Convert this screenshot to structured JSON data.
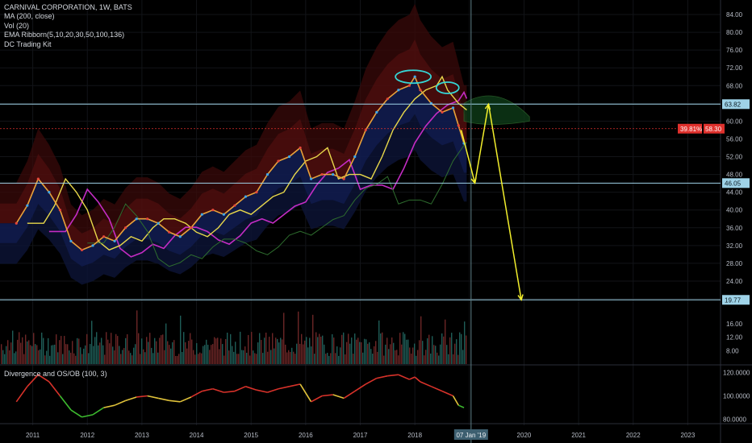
{
  "legend": {
    "symbol_line": "CARNIVAL CORPORATION, 1W, BATS",
    "ma": "MA (200, close)",
    "vol": "Vol (20)",
    "ema": "EMA Ribborn(5,10,20,30,50,100,136)",
    "kit": "DC Trading Kit"
  },
  "oscillator": {
    "title": "Divergence and OS/OB (100, 3)"
  },
  "price_axis": {
    "ticks": [
      "84.00",
      "80.00",
      "76.00",
      "72.00",
      "68.00",
      "64.00",
      "60.00",
      "56.00",
      "52.00",
      "48.00",
      "44.00",
      "40.00",
      "36.00",
      "32.00",
      "28.00",
      "24.00",
      "20.00"
    ]
  },
  "volume_axis": {
    "ticks": [
      "16.00",
      "12.00",
      "8.00"
    ]
  },
  "osc_axis": {
    "ticks": [
      "120.0000",
      "100.0000",
      "80.0000"
    ]
  },
  "time_axis": {
    "ticks": [
      "2011",
      "2012",
      "2013",
      "2014",
      "2015",
      "2016",
      "2017",
      "2018",
      "2019",
      "2020",
      "2021",
      "2022",
      "2023"
    ],
    "cursor_label": "07 Jan '19"
  },
  "levels": {
    "upper": "63.82",
    "mid": "46.05",
    "low": "19.77",
    "last_pct": "39.81%",
    "last_price": "58.30"
  },
  "colors": {
    "background": "#000000",
    "level_line": "#9fd3e8",
    "projection": "#f3ef2c",
    "last_price": "#e0312d",
    "head_shoulder": "#35d6d6"
  },
  "chart_data": {
    "type": "line",
    "title": "CARNIVAL CORPORATION, 1W, BATS",
    "x": [
      2010.7,
      2010.9,
      2011.1,
      2011.3,
      2011.5,
      2011.7,
      2011.9,
      2012.1,
      2012.3,
      2012.5,
      2012.7,
      2012.9,
      2013.1,
      2013.3,
      2013.5,
      2013.7,
      2013.9,
      2014.1,
      2014.3,
      2014.5,
      2014.7,
      2014.9,
      2015.1,
      2015.3,
      2015.5,
      2015.7,
      2015.9,
      2016.1,
      2016.3,
      2016.5,
      2016.7,
      2016.9,
      2017.1,
      2017.3,
      2017.5,
      2017.7,
      2017.9,
      2018.0,
      2018.1,
      2018.3,
      2018.5,
      2018.7,
      2018.8,
      2018.9
    ],
    "series": [
      {
        "values": [
          37,
          41,
          47,
          44,
          40,
          33,
          31,
          32,
          34,
          33,
          36,
          38,
          38,
          37,
          35,
          34,
          36,
          39,
          40,
          39,
          41,
          43,
          44,
          48,
          51,
          52,
          54,
          47,
          48,
          48,
          47,
          52,
          58,
          62,
          65,
          67,
          68,
          70,
          67,
          64,
          62,
          63,
          59,
          55
        ]
      }
    ],
    "ylim": [
      18,
      86
    ],
    "xlim": [
      2010.4,
      2023.6
    ],
    "horizontal_levels": [
      63.82,
      46.05,
      19.77
    ],
    "projection_path": [
      [
        2019.1,
        46.05
      ],
      [
        2019.35,
        63.82
      ],
      [
        2019.95,
        19.77
      ]
    ]
  }
}
